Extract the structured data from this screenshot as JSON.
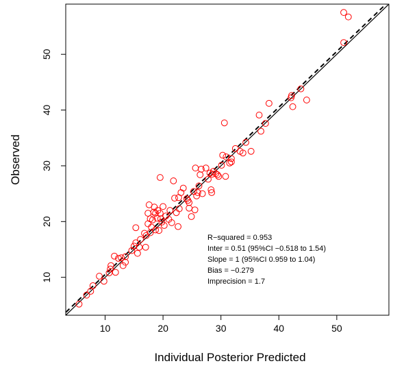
{
  "chart_data": {
    "type": "scatter",
    "title": "",
    "xlabel": "Individual Posterior Predicted",
    "ylabel": "Observed",
    "xlim": [
      3.2,
      59.0
    ],
    "ylim": [
      3.2,
      59.0
    ],
    "x_ticks": [
      10,
      20,
      30,
      40,
      50
    ],
    "y_ticks": [
      10,
      20,
      30,
      40,
      50
    ],
    "x_tick_labels": [
      "10",
      "20",
      "30",
      "40",
      "50"
    ],
    "y_tick_labels": [
      "10",
      "20",
      "30",
      "40",
      "50"
    ],
    "grid": false,
    "marker": {
      "shape": "open-circle",
      "color": "#ff0000"
    },
    "lines": [
      {
        "kind": "identity",
        "style": "solid",
        "intercept": 0,
        "slope": 1
      },
      {
        "kind": "regression",
        "style": "dashed",
        "intercept": 0.51,
        "slope": 1
      }
    ],
    "annotations": [
      "R−squared = 0.953",
      "Inter = 0.51 (95%CI −0.518 to 1.54)",
      "Slope = 1 (95%CI 0.959 to 1.04)",
      "Bias = −0.279",
      "Imprecision  = 1.7"
    ],
    "points": [
      [
        5.5,
        5.2
      ],
      [
        6.8,
        6.8
      ],
      [
        7.5,
        7.5
      ],
      [
        7.9,
        8.5
      ],
      [
        9.0,
        10.2
      ],
      [
        9.8,
        9.3
      ],
      [
        10.7,
        10.8
      ],
      [
        10.9,
        11.5
      ],
      [
        11.0,
        12.1
      ],
      [
        11.6,
        13.8
      ],
      [
        11.8,
        10.9
      ],
      [
        12.3,
        13.4
      ],
      [
        12.8,
        13.5
      ],
      [
        13.1,
        12.1
      ],
      [
        13.5,
        12.7
      ],
      [
        13.5,
        13.7
      ],
      [
        14.6,
        14.8
      ],
      [
        15.0,
        15.6
      ],
      [
        15.3,
        16.2
      ],
      [
        15.3,
        18.9
      ],
      [
        15.6,
        14.3
      ],
      [
        15.9,
        15.4
      ],
      [
        16.1,
        16.8
      ],
      [
        16.8,
        17.9
      ],
      [
        17.0,
        15.4
      ],
      [
        17.1,
        17.5
      ],
      [
        17.4,
        19.6
      ],
      [
        17.4,
        21.5
      ],
      [
        17.6,
        23.0
      ],
      [
        17.8,
        20.5
      ],
      [
        17.8,
        18.0
      ],
      [
        18.0,
        19.0
      ],
      [
        18.2,
        20.3
      ],
      [
        18.4,
        21.7
      ],
      [
        18.5,
        22.6
      ],
      [
        18.7,
        21.5
      ],
      [
        18.7,
        18.5
      ],
      [
        19.0,
        20.6
      ],
      [
        19.1,
        22.0
      ],
      [
        19.3,
        18.4
      ],
      [
        19.5,
        21.5
      ],
      [
        19.6,
        20.5
      ],
      [
        19.5,
        27.9
      ],
      [
        19.8,
        19.9
      ],
      [
        20.0,
        22.7
      ],
      [
        20.2,
        19.3
      ],
      [
        20.5,
        21.0
      ],
      [
        21.0,
        20.4
      ],
      [
        21.2,
        22.0
      ],
      [
        21.5,
        19.8
      ],
      [
        21.8,
        27.3
      ],
      [
        22.0,
        24.2
      ],
      [
        22.3,
        21.6
      ],
      [
        22.6,
        19.1
      ],
      [
        22.7,
        24.3
      ],
      [
        22.8,
        22.3
      ],
      [
        23.1,
        25.2
      ],
      [
        23.5,
        26.0
      ],
      [
        24.1,
        24.1
      ],
      [
        24.3,
        23.8
      ],
      [
        24.5,
        23.4
      ],
      [
        24.5,
        22.4
      ],
      [
        24.9,
        20.9
      ],
      [
        25.3,
        25.4
      ],
      [
        25.5,
        22.1
      ],
      [
        25.6,
        29.6
      ],
      [
        25.8,
        24.6
      ],
      [
        26.0,
        25.2
      ],
      [
        26.2,
        26.4
      ],
      [
        26.4,
        28.4
      ],
      [
        26.6,
        29.4
      ],
      [
        26.8,
        25.0
      ],
      [
        27.4,
        29.6
      ],
      [
        27.8,
        27.6
      ],
      [
        28.1,
        28.7
      ],
      [
        28.3,
        25.7
      ],
      [
        28.4,
        25.2
      ],
      [
        28.5,
        28.5
      ],
      [
        28.7,
        29.0
      ],
      [
        29.1,
        28.6
      ],
      [
        29.4,
        28.4
      ],
      [
        29.6,
        28.1
      ],
      [
        30.1,
        30.1
      ],
      [
        30.3,
        31.9
      ],
      [
        30.6,
        37.7
      ],
      [
        30.8,
        28.1
      ],
      [
        30.9,
        31.6
      ],
      [
        31.5,
        30.5
      ],
      [
        31.8,
        31.3
      ],
      [
        31.8,
        30.7
      ],
      [
        32.5,
        33.1
      ],
      [
        33.3,
        32.6
      ],
      [
        33.8,
        32.3
      ],
      [
        34.3,
        34.2
      ],
      [
        35.2,
        32.6
      ],
      [
        36.6,
        39.1
      ],
      [
        36.9,
        36.2
      ],
      [
        37.7,
        37.6
      ],
      [
        38.3,
        41.2
      ],
      [
        42.1,
        42.2
      ],
      [
        42.2,
        42.6
      ],
      [
        42.4,
        40.6
      ],
      [
        43.8,
        43.8
      ],
      [
        44.8,
        41.8
      ],
      [
        51.2,
        57.5
      ],
      [
        51.2,
        52.1
      ],
      [
        52.0,
        56.7
      ]
    ]
  }
}
